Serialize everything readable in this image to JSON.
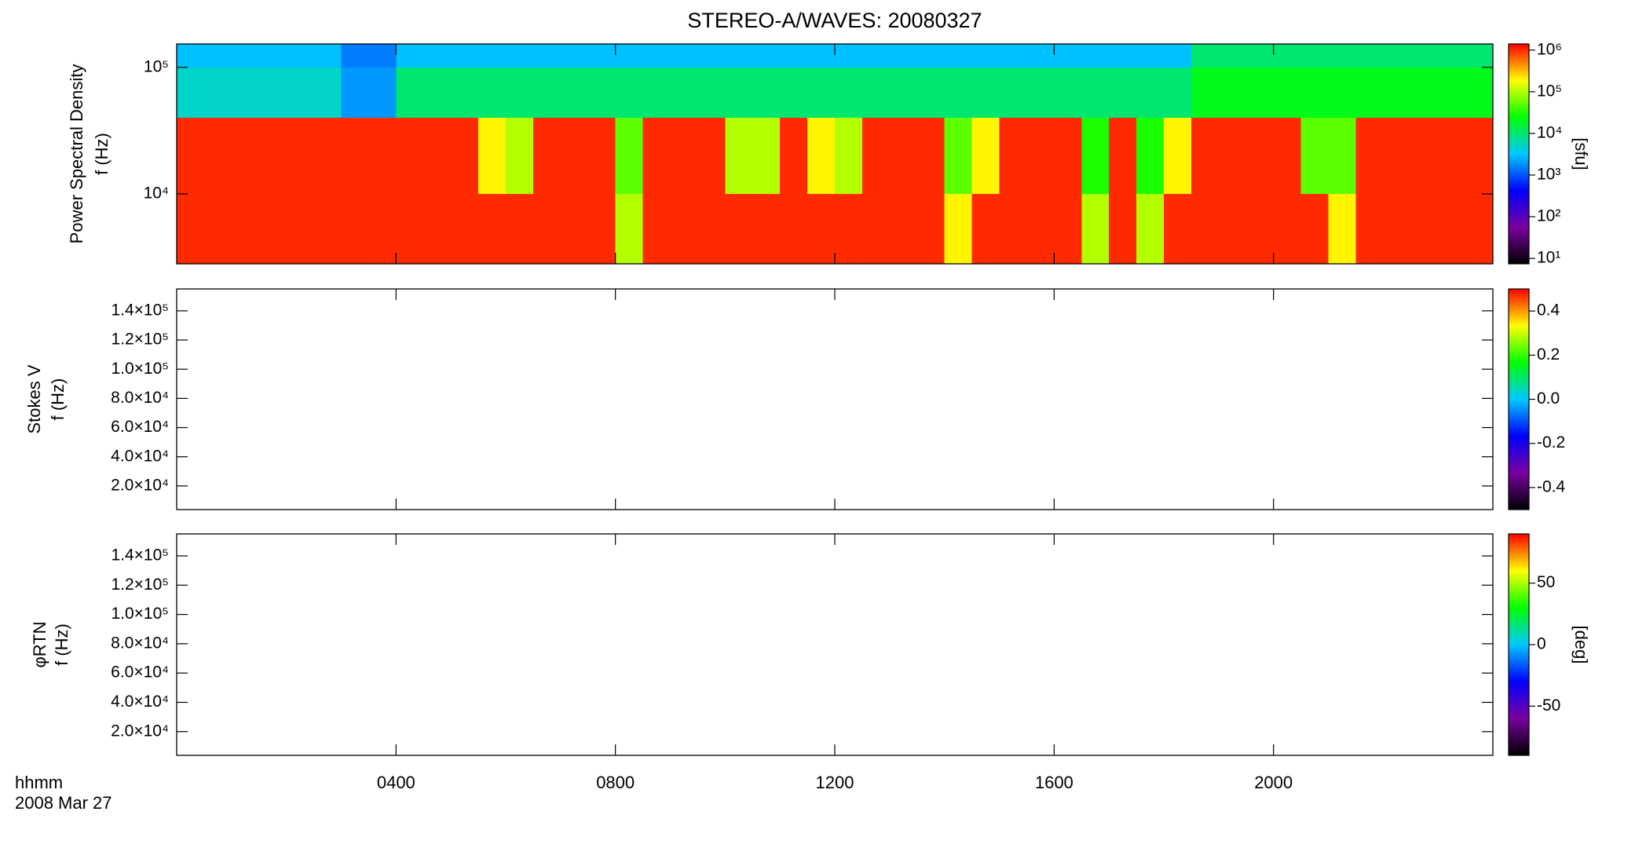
{
  "chart_data": [
    {
      "type": "heatmap",
      "title": "STEREO-A/WAVES: 20080327",
      "ylabel": [
        "Power Spectral Density",
        "f (Hz)"
      ],
      "ylog": true,
      "ylim": [
        2800,
        153000
      ],
      "yticks": [
        {
          "value": 10000,
          "label": "10⁴"
        },
        {
          "value": 100000,
          "label": "10⁵"
        }
      ],
      "xbins": [
        0,
        0.5,
        1,
        1.5,
        2,
        2.5,
        3,
        3.5,
        4,
        4.5,
        5,
        5.5,
        6,
        6.5,
        7,
        7.5,
        8,
        8.5,
        9,
        9.5,
        10,
        10.5,
        11,
        11.5,
        12,
        12.5,
        13,
        13.5,
        14,
        14.5,
        15,
        15.5,
        16,
        16.5,
        17,
        17.5,
        18,
        18.5,
        19,
        19.5,
        20,
        20.5,
        21,
        21.5,
        22,
        22.5,
        23,
        23.5,
        24
      ],
      "ybins": [
        2800,
        10000,
        40000,
        100000,
        153000
      ],
      "values": [
        [
          1000000,
          1000000,
          1000000,
          1000000,
          1000000,
          1000000,
          1000000,
          1000000,
          1000000,
          1000000,
          1000000,
          1000000,
          1000000,
          1000000,
          1000000,
          1000000,
          100000,
          1000000,
          1000000,
          1000000,
          1000000,
          1000000,
          1000000,
          1000000,
          1000000,
          1000000,
          1000000,
          1000000,
          200000,
          1000000,
          1000000,
          1000000,
          1000000,
          100000,
          1000000,
          100000,
          1000000,
          1000000,
          1000000,
          1000000,
          1000000,
          1000000,
          200000,
          1000000,
          1000000,
          1000000,
          1000000,
          1000000
        ],
        [
          1000000,
          1000000,
          1000000,
          1000000,
          1000000,
          1000000,
          1000000,
          1000000,
          1000000,
          1000000,
          1000000,
          200000,
          100000,
          1000000,
          1000000,
          1000000,
          50000,
          1000000,
          1000000,
          1000000,
          100000,
          100000,
          1000000,
          200000,
          100000,
          1000000,
          1000000,
          1000000,
          50000,
          200000,
          1000000,
          1000000,
          1000000,
          30000,
          1000000,
          30000,
          200000,
          1000000,
          1000000,
          1000000,
          1000000,
          50000,
          50000,
          1000000,
          1000000,
          1000000,
          1000000,
          1000000
        ],
        [
          5000,
          5000,
          5000,
          5000,
          5000,
          5000,
          2000,
          2000,
          10000,
          10000,
          10000,
          10000,
          10000,
          10000,
          10000,
          10000,
          10000,
          10000,
          10000,
          10000,
          10000,
          10000,
          10000,
          10000,
          10000,
          10000,
          10000,
          10000,
          10000,
          10000,
          10000,
          10000,
          10000,
          10000,
          10000,
          10000,
          10000,
          20000,
          20000,
          20000,
          20000,
          20000,
          20000,
          20000,
          20000,
          20000,
          20000,
          20000
        ],
        [
          3000,
          3000,
          3000,
          3000,
          3000,
          3000,
          1500,
          1500,
          3000,
          3000,
          3000,
          3000,
          3000,
          3000,
          3000,
          3000,
          3000,
          3000,
          3000,
          3000,
          3000,
          3000,
          3000,
          3000,
          3000,
          3000,
          3000,
          3000,
          3000,
          3000,
          3000,
          3000,
          3000,
          3000,
          3000,
          3000,
          3000,
          10000,
          10000,
          10000,
          10000,
          10000,
          10000,
          10000,
          10000,
          10000,
          10000,
          10000
        ]
      ],
      "zlog": true,
      "zlim": [
        7.4,
        1400000
      ],
      "zlabel": "[sfu]",
      "zticks": [
        {
          "value": 10,
          "label": "10¹"
        },
        {
          "value": 100,
          "label": "10²"
        },
        {
          "value": 1000,
          "label": "10³"
        },
        {
          "value": 10000,
          "label": "10⁴"
        },
        {
          "value": 100000,
          "label": "10⁵"
        },
        {
          "value": 1000000,
          "label": "10⁶"
        }
      ],
      "colormap": [
        "#000000",
        "#7a00a0",
        "#0000ff",
        "#00c8ff",
        "#00ff00",
        "#ffff00",
        "#ff0000"
      ]
    },
    {
      "type": "heatmap",
      "ylabel": [
        "Stokes V",
        "f (Hz)"
      ],
      "ylim": [
        3800,
        155000
      ],
      "yticks": [
        {
          "value": 20000,
          "label": "2.0×10⁴"
        },
        {
          "value": 40000,
          "label": "4.0×10⁴"
        },
        {
          "value": 60000,
          "label": "6.0×10⁴"
        },
        {
          "value": 80000,
          "label": "8.0×10⁴"
        },
        {
          "value": 100000,
          "label": "1.0×10⁵"
        },
        {
          "value": 120000,
          "label": "1.2×10⁵"
        },
        {
          "value": 140000,
          "label": "1.4×10⁵"
        }
      ],
      "zlim": [
        -0.5,
        0.5
      ],
      "zticks": [
        -0.4,
        -0.2,
        {
          "value": 0,
          "label": "0.0"
        },
        0.2,
        0.4
      ],
      "colormap": [
        "#000000",
        "#7a00a0",
        "#0000ff",
        "#00c8ff",
        "#00ff00",
        "#ffff00",
        "#ff0000"
      ]
    },
    {
      "type": "heatmap",
      "ylabel": [
        "φRTN",
        "f (Hz)"
      ],
      "ylim": [
        3800,
        155000
      ],
      "yticks": [
        {
          "value": 20000,
          "label": "2.0×10⁴"
        },
        {
          "value": 40000,
          "label": "4.0×10⁴"
        },
        {
          "value": 60000,
          "label": "6.0×10⁴"
        },
        {
          "value": 80000,
          "label": "8.0×10⁴"
        },
        {
          "value": 100000,
          "label": "1.0×10⁵"
        },
        {
          "value": 120000,
          "label": "1.2×10⁵"
        },
        {
          "value": 140000,
          "label": "1.4×10⁵"
        }
      ],
      "zlim": [
        -90,
        90
      ],
      "zlabel": "[deg]",
      "zticks": [
        -50,
        0,
        50
      ],
      "colormap": [
        "#000000",
        "#7a00a0",
        "#0000ff",
        "#00c8ff",
        "#00ff00",
        "#ffff00",
        "#ff0000"
      ],
      "xlim": [
        0,
        24
      ],
      "xticks": [
        {
          "value": 4,
          "label": "0400"
        },
        {
          "value": 8,
          "label": "0800"
        },
        {
          "value": 12,
          "label": "1200"
        },
        {
          "value": 16,
          "label": "1600"
        },
        {
          "value": 20,
          "label": "2000"
        }
      ],
      "xlabel": "hhmm",
      "date": "2008 Mar 27"
    }
  ]
}
